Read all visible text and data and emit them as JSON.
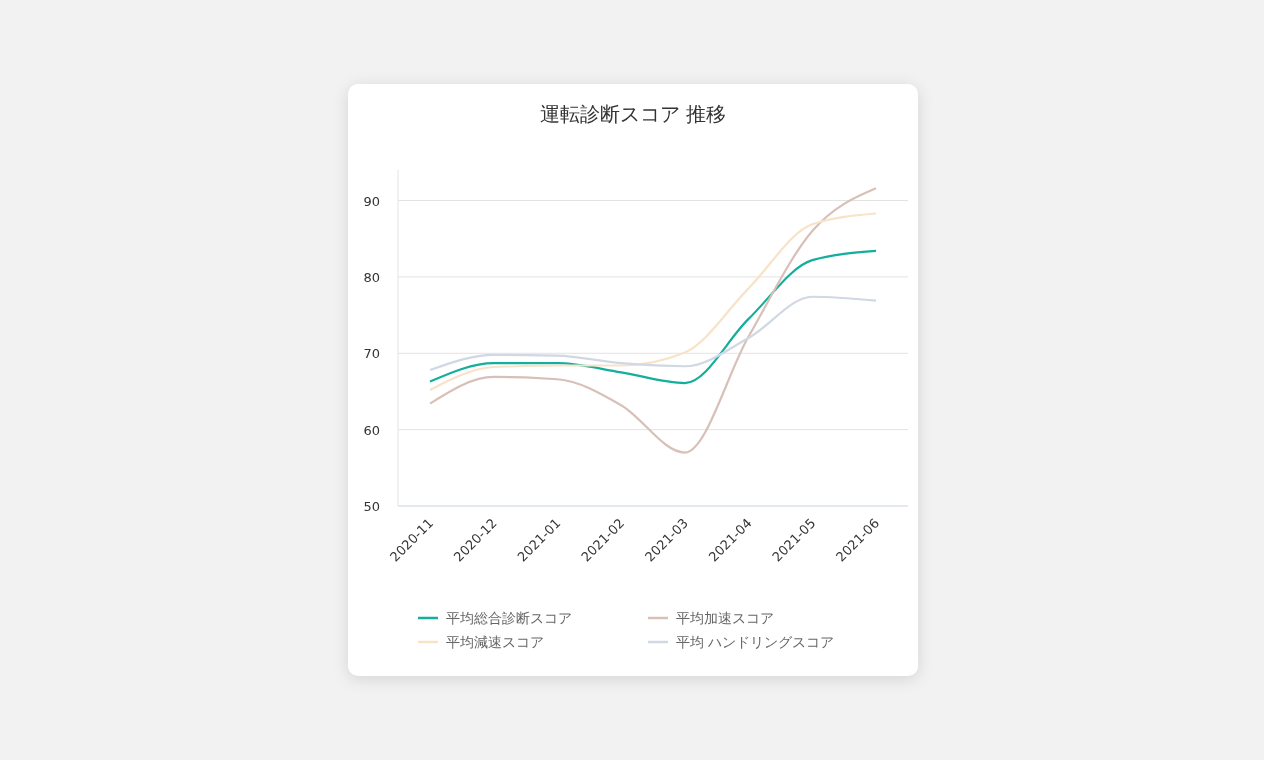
{
  "chart_data": {
    "type": "line",
    "title": "運転診断スコア 推移",
    "categories": [
      "2020-11",
      "2020-12",
      "2021-01",
      "2021-02",
      "2021-03",
      "2021-04",
      "2021-05",
      "2021-06"
    ],
    "series": [
      {
        "name": "平均総合診断スコア",
        "color": "#14ae9c",
        "values": [
          66.3,
          68.7,
          68.7,
          67.5,
          66.1,
          74.5,
          82.2,
          83.4
        ]
      },
      {
        "name": "平均加速スコア",
        "color": "#d8c0b8",
        "values": [
          63.4,
          66.9,
          66.6,
          63.2,
          57.0,
          72.2,
          86.0,
          91.6
        ]
      },
      {
        "name": "平均減速スコア",
        "color": "#f8e2c8",
        "values": [
          65.2,
          68.2,
          68.4,
          68.4,
          70.1,
          78.5,
          86.9,
          88.3
        ]
      },
      {
        "name": "平均 ハンドリングスコア",
        "color": "#d0d8e4",
        "values": [
          67.8,
          69.8,
          69.7,
          68.7,
          68.3,
          72.0,
          77.4,
          76.9
        ]
      }
    ],
    "ylim": [
      50,
      94
    ],
    "yticks": [
      50,
      60,
      70,
      80,
      90
    ],
    "grid": "y",
    "legend": "bottom",
    "marker": "none",
    "line_style": "solid"
  }
}
